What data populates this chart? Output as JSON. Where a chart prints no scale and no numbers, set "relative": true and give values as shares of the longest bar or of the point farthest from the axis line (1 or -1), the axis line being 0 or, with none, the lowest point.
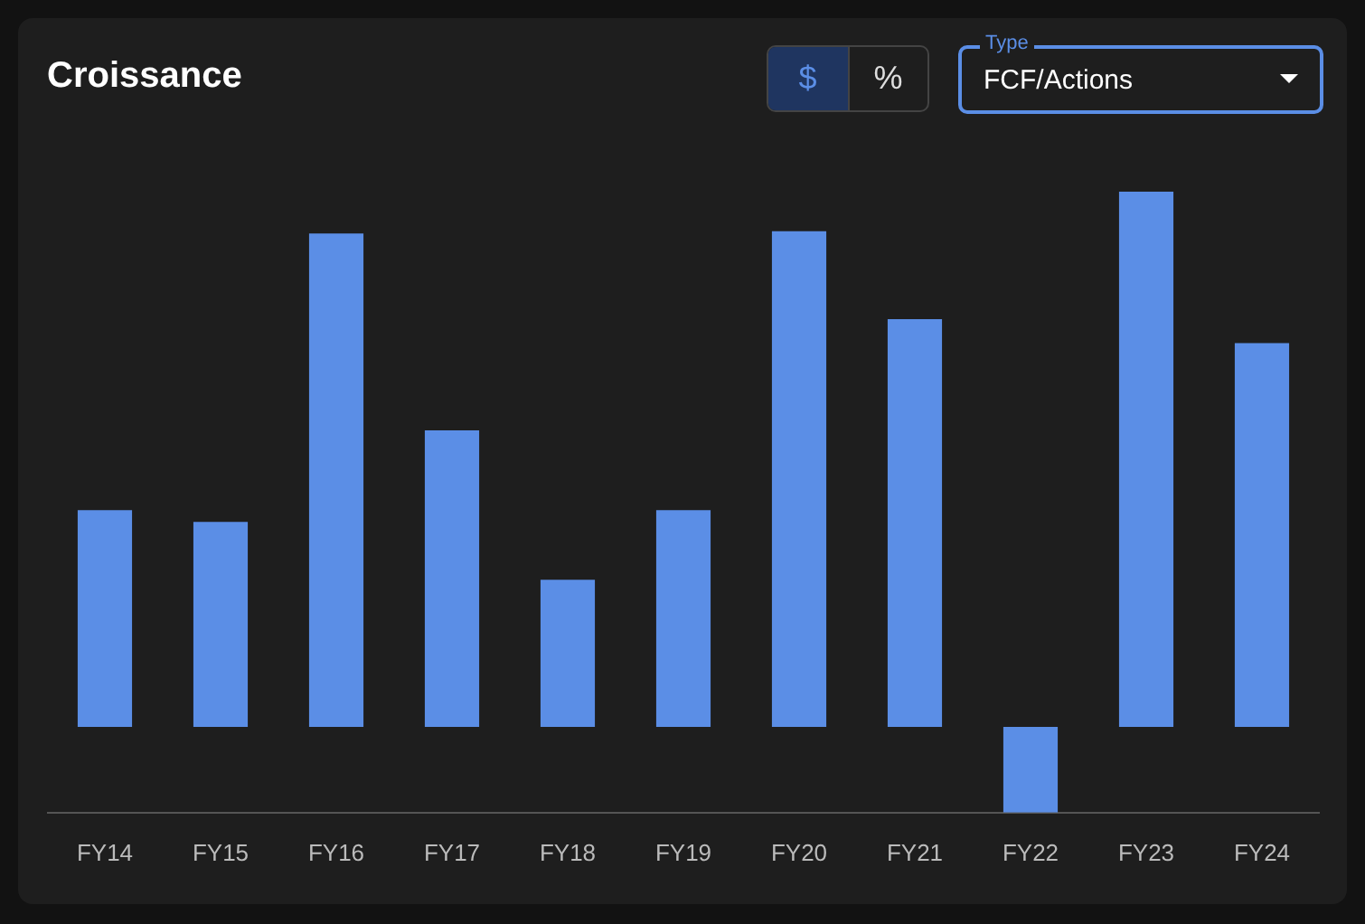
{
  "chart_data": {
    "type": "bar",
    "title": "Croissance",
    "relative": true,
    "color": "#5b8ee6",
    "categories": [
      "FY14",
      "FY15",
      "FY16",
      "FY17",
      "FY18",
      "FY19",
      "FY20",
      "FY21",
      "FY22",
      "FY23",
      "FY24"
    ],
    "values": [
      0.405,
      0.383,
      0.922,
      0.554,
      0.275,
      0.405,
      0.926,
      0.762,
      -0.16,
      1,
      0.717
    ],
    "annotations": [
      "$",
      "%",
      "Type",
      "FCF/Actions"
    ]
  }
}
